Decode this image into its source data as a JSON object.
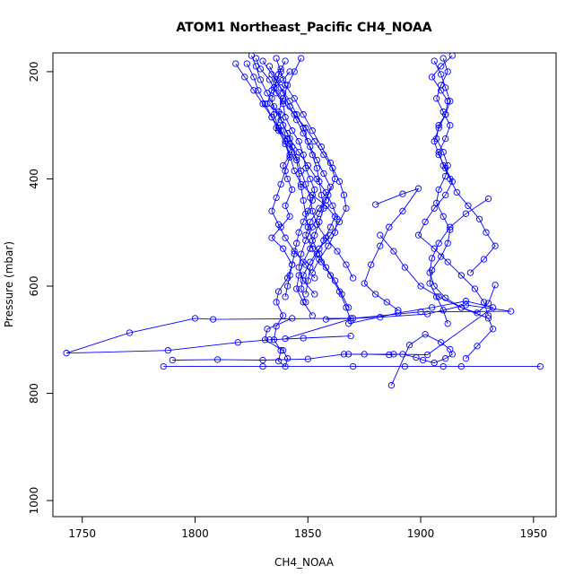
{
  "chart_data": {
    "type": "line",
    "title": "ATOM1 Northeast_Pacific CH4_NOAA",
    "xlabel": "CH4_NOAA",
    "ylabel": "Pressure (mbar)",
    "xlim": [
      1737,
      1960
    ],
    "ylim": [
      1030,
      165
    ],
    "xticks": [
      1750,
      1800,
      1850,
      1900,
      1950
    ],
    "yticks": [
      200,
      400,
      600,
      800,
      1000
    ],
    "grid": false,
    "marker": "open-circle",
    "color": "#0000ff",
    "series": [
      {
        "x": [
          1842,
          1839,
          1834,
          1832,
          1838,
          1836,
          1841,
          1843,
          1839,
          1841,
          1843,
          1840,
          1842,
          1838,
          1834,
          1839,
          1843,
          1841,
          1837,
          1836,
          1839,
          1836,
          1835,
          1838,
          1837,
          1840,
          1841,
          1839,
          1831,
          1832,
          1843
        ],
        "y": [
          200,
          215,
          235,
          260,
          280,
          305,
          325,
          350,
          375,
          400,
          420,
          450,
          470,
          490,
          510,
          530,
          560,
          585,
          610,
          630,
          655,
          675,
          700,
          720,
          740,
          750,
          735,
          720,
          700,
          680,
          660
        ]
      },
      {
        "x": [
          1827,
          1829,
          1833,
          1836,
          1839,
          1840,
          1843,
          1846,
          1848,
          1849,
          1851,
          1853,
          1852,
          1850,
          1848,
          1846,
          1845,
          1844,
          1843,
          1842,
          1841,
          1840
        ],
        "y": [
          175,
          195,
          215,
          240,
          260,
          285,
          310,
          330,
          355,
          380,
          400,
          420,
          440,
          460,
          480,
          500,
          520,
          540,
          560,
          580,
          600,
          620
        ]
      },
      {
        "x": [
          1830,
          1834,
          1838,
          1842,
          1845,
          1848,
          1850,
          1852,
          1854,
          1855,
          1856,
          1857,
          1855,
          1853,
          1851,
          1848,
          1846,
          1845,
          1848,
          1852
        ],
        "y": [
          180,
          205,
          230,
          255,
          280,
          305,
          330,
          355,
          380,
          405,
          430,
          455,
          480,
          505,
          530,
          555,
          580,
          605,
          630,
          655
        ]
      },
      {
        "x": [
          1836,
          1838,
          1840,
          1844,
          1848,
          1852,
          1856,
          1860,
          1862,
          1859,
          1855,
          1851,
          1849,
          1852,
          1856,
          1860,
          1864,
          1867,
          1869
        ],
        "y": [
          175,
          200,
          225,
          250,
          280,
          310,
          340,
          370,
          400,
          430,
          455,
          480,
          505,
          530,
          555,
          580,
          610,
          640,
          665
        ]
      },
      {
        "x": [
          1825,
          1827,
          1829,
          1832,
          1835,
          1838,
          1841,
          1843,
          1845,
          1846,
          1847,
          1848,
          1849,
          1850,
          1852,
          1855,
          1858,
          1862,
          1865,
          1868
        ],
        "y": [
          170,
          190,
          215,
          240,
          265,
          290,
          315,
          340,
          365,
          390,
          415,
          440,
          465,
          490,
          515,
          540,
          565,
          590,
          615,
          640
        ]
      },
      {
        "x": [
          1838,
          1836,
          1834,
          1835,
          1837,
          1840,
          1842,
          1844,
          1847,
          1852,
          1858,
          1862,
          1860,
          1857,
          1854,
          1851,
          1850,
          1849
        ],
        "y": [
          195,
          220,
          250,
          280,
          305,
          330,
          355,
          385,
          410,
          430,
          450,
          470,
          490,
          515,
          540,
          565,
          590,
          615
        ]
      },
      {
        "x": [
          1823,
          1826,
          1828,
          1831,
          1834,
          1837,
          1840,
          1842,
          1840,
          1838,
          1836,
          1834,
          1837,
          1840,
          1844,
          1849,
          1853
        ],
        "y": [
          185,
          210,
          235,
          260,
          285,
          310,
          335,
          360,
          385,
          410,
          435,
          460,
          485,
          510,
          535,
          560,
          585
        ]
      },
      {
        "x": [
          1833,
          1836,
          1839,
          1842,
          1845,
          1848,
          1851,
          1854,
          1857,
          1860,
          1858,
          1855,
          1852,
          1849,
          1847,
          1846,
          1848,
          1853
        ],
        "y": [
          190,
          215,
          240,
          265,
          290,
          315,
          340,
          365,
          390,
          415,
          440,
          465,
          490,
          515,
          540,
          565,
          590,
          615
        ]
      },
      {
        "x": [
          1840,
          1837,
          1835,
          1839,
          1844,
          1849,
          1853,
          1857,
          1861,
          1864,
          1866,
          1867,
          1864,
          1860,
          1855,
          1851,
          1848,
          1847,
          1849
        ],
        "y": [
          180,
          205,
          230,
          255,
          280,
          305,
          330,
          355,
          380,
          405,
          430,
          455,
          480,
          505,
          530,
          555,
          580,
          605,
          630
        ]
      },
      {
        "x": [
          1818,
          1822,
          1826,
          1830,
          1834,
          1838,
          1842,
          1845,
          1847,
          1849,
          1851,
          1852,
          1854,
          1858,
          1863,
          1867,
          1870
        ],
        "y": [
          185,
          210,
          235,
          260,
          285,
          310,
          335,
          360,
          385,
          410,
          435,
          460,
          485,
          510,
          535,
          560,
          585
        ]
      },
      {
        "x": [
          1847,
          1844,
          1841,
          1839,
          1837,
          1839,
          1842,
          1846,
          1850,
          1854,
          1858,
          1861,
          1863,
          1862,
          1859,
          1855,
          1852
        ],
        "y": [
          175,
          200,
          225,
          250,
          275,
          300,
          325,
          350,
          375,
          400,
          425,
          450,
          475,
          500,
          525,
          550,
          575
        ]
      },
      {
        "x": [
          1869,
          1808,
          1800,
          1771,
          1743,
          1788,
          1819,
          1833,
          1848,
          1869
        ],
        "y": [
          660,
          662,
          660,
          687,
          725,
          720,
          705,
          700,
          697,
          693
        ]
      },
      {
        "x": [
          1840,
          1870,
          1900,
          1940,
          1920,
          1903,
          1882,
          1858
        ],
        "y": [
          698,
          660,
          648,
          647,
          635,
          652,
          658,
          662
        ]
      },
      {
        "x": [
          1790,
          1810,
          1830,
          1850,
          1866,
          1888,
          1903,
          1932,
          1920,
          1905,
          1890,
          1868
        ],
        "y": [
          738,
          737,
          738,
          736,
          727,
          727,
          728,
          640,
          628,
          640,
          650,
          670
        ]
      },
      {
        "x": [
          1786,
          1830,
          1870,
          1893,
          1910,
          1918,
          1953
        ],
        "y": [
          750,
          750,
          750,
          750,
          750,
          750,
          750
        ]
      },
      {
        "x": [
          1868,
          1875,
          1886,
          1892,
          1898,
          1901,
          1906,
          1911,
          1914,
          1913,
          1909,
          1902,
          1895,
          1887
        ],
        "y": [
          727,
          727,
          728,
          727,
          733,
          738,
          743,
          735,
          727,
          718,
          705,
          690,
          710,
          785
        ]
      },
      {
        "x": [
          1920,
          1925,
          1932,
          1930,
          1918,
          1908,
          1900,
          1893,
          1888,
          1882
        ],
        "y": [
          735,
          712,
          680,
          660,
          640,
          620,
          600,
          565,
          535,
          505
        ]
      },
      {
        "x": [
          1914,
          1909,
          1905,
          1909,
          1912,
          1911,
          1908,
          1907,
          1910,
          1912,
          1911,
          1908,
          1907,
          1910,
          1913,
          1912,
          1909,
          1905,
          1904,
          1907,
          1910,
          1912
        ],
        "y": [
          170,
          190,
          210,
          235,
          255,
          280,
          300,
          325,
          350,
          375,
          395,
          420,
          445,
          470,
          495,
          520,
          545,
          570,
          595,
          620,
          645,
          670
        ]
      },
      {
        "x": [
          1906,
          1909,
          1911,
          1913,
          1911,
          1908,
          1906,
          1908,
          1911,
          1914,
          1911,
          1906,
          1902,
          1899,
          1906,
          1912,
          1918,
          1924,
          1928,
          1930
        ],
        "y": [
          180,
          205,
          230,
          255,
          280,
          305,
          330,
          355,
          380,
          405,
          430,
          455,
          480,
          505,
          530,
          555,
          580,
          605,
          630,
          655
        ]
      },
      {
        "x": [
          1910,
          1912,
          1909,
          1907,
          1910,
          1913,
          1911,
          1908,
          1910,
          1913,
          1916,
          1921,
          1926,
          1929,
          1933,
          1928,
          1922
        ],
        "y": [
          175,
          200,
          225,
          250,
          275,
          300,
          325,
          350,
          375,
          400,
          425,
          450,
          475,
          500,
          525,
          550,
          575
        ]
      },
      {
        "x": [
          1880,
          1892,
          1899,
          1892,
          1886,
          1882,
          1878,
          1875,
          1880,
          1885,
          1890
        ],
        "y": [
          448,
          428,
          418,
          460,
          490,
          525,
          560,
          595,
          615,
          630,
          645
        ]
      },
      {
        "x": [
          1930,
          1920,
          1913,
          1908,
          1905,
          1904,
          1906,
          1911,
          1918,
          1925,
          1930,
          1933
        ],
        "y": [
          437,
          465,
          490,
          520,
          548,
          575,
          600,
          622,
          640,
          650,
          632,
          598
        ]
      }
    ]
  }
}
